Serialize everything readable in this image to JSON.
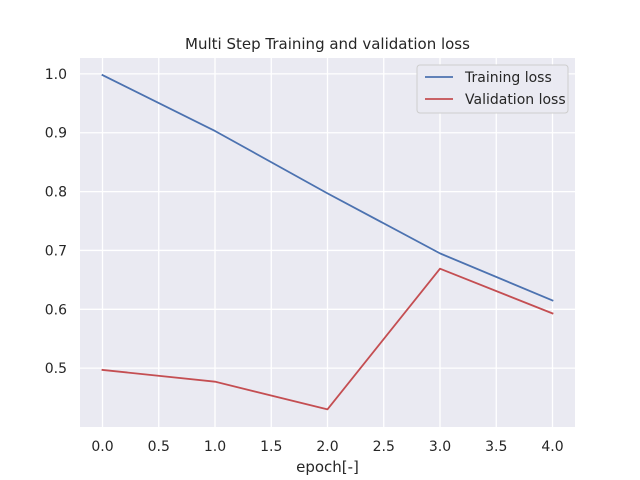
{
  "chart_data": {
    "type": "line",
    "title": "Multi Step Training and validation loss",
    "xlabel": "epoch[-]",
    "ylabel": "",
    "x": [
      0,
      1,
      2,
      3,
      4
    ],
    "xlim": [
      -0.2,
      4.2
    ],
    "ylim": [
      0.4,
      1.027
    ],
    "xticks": [
      0.0,
      0.5,
      1.0,
      1.5,
      2.0,
      2.5,
      3.0,
      3.5,
      4.0
    ],
    "xtick_labels": [
      "0.0",
      "0.5",
      "1.0",
      "1.5",
      "2.0",
      "2.5",
      "3.0",
      "3.5",
      "4.0"
    ],
    "yticks": [
      0.5,
      0.6,
      0.7,
      0.8,
      0.9,
      1.0
    ],
    "ytick_labels": [
      "0.5",
      "0.6",
      "0.7",
      "0.8",
      "0.9",
      "1.0"
    ],
    "grid": true,
    "legend_position": "top-right",
    "series": [
      {
        "name": "Training loss",
        "color": "#4c72b0",
        "values": [
          0.998,
          0.903,
          0.797,
          0.695,
          0.615
        ]
      },
      {
        "name": "Validation loss",
        "color": "#c44e52",
        "values": [
          0.497,
          0.477,
          0.43,
          0.669,
          0.593
        ]
      }
    ],
    "colors": {
      "plot_background": "#eaeaf2",
      "grid": "#ffffff"
    }
  }
}
